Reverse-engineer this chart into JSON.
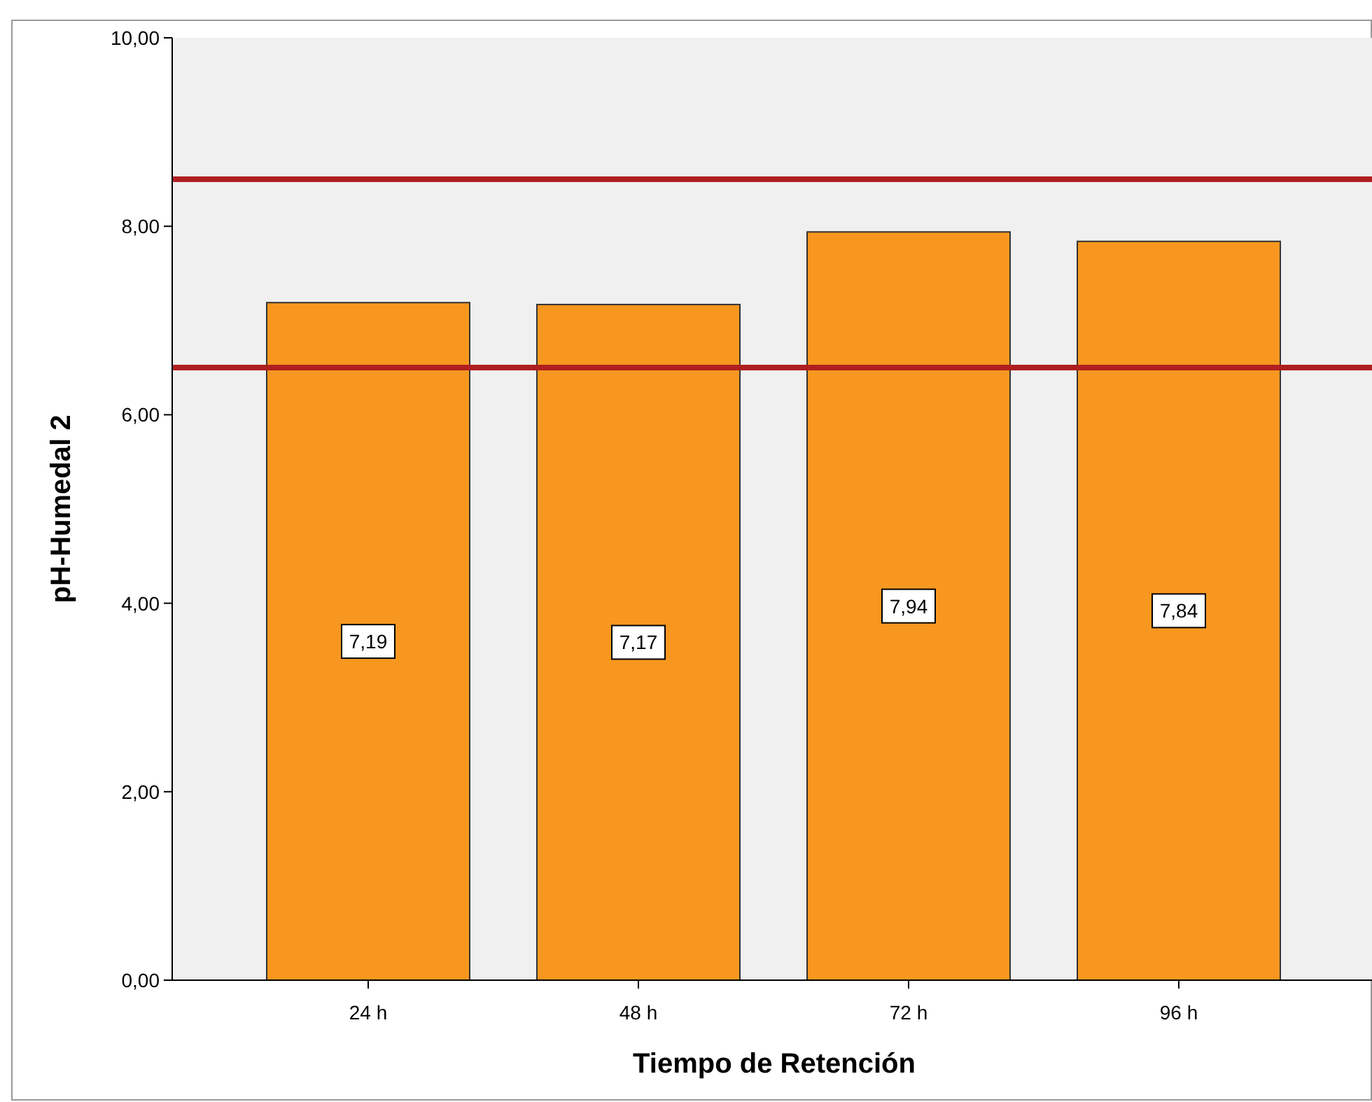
{
  "chart_data": {
    "type": "bar",
    "xlabel": "Tiempo de Retención",
    "ylabel": "pH-Humedal 2",
    "categories": [
      "24 h",
      "48 h",
      "72 h",
      "96 h"
    ],
    "values": [
      7.19,
      7.17,
      7.94,
      7.84
    ],
    "value_labels": [
      "7,19",
      "7,17",
      "7,94",
      "7,84"
    ],
    "color": "#f7971f",
    "ylim": [
      0,
      10
    ],
    "yticks": [
      {
        "value": 0,
        "label": "0,00"
      },
      {
        "value": 2,
        "label": "2,00"
      },
      {
        "value": 4,
        "label": "4,00"
      },
      {
        "value": 6,
        "label": "6,00"
      },
      {
        "value": 8,
        "label": "8,00"
      },
      {
        "value": 10,
        "label": "10,00"
      }
    ],
    "ref_lines": [
      {
        "axis": "y",
        "value": 8.5,
        "color": "#b01f1f"
      },
      {
        "axis": "y",
        "value": 6.5,
        "color": "#b01f1f"
      }
    ],
    "grid": false
  }
}
